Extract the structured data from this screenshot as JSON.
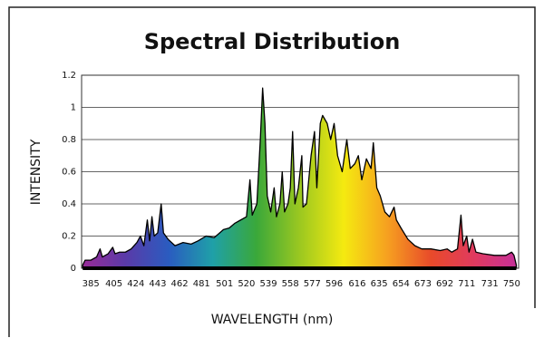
{
  "chart_data": {
    "type": "area",
    "title": "Spectral Distribution",
    "xlabel": "WAVELENGTH (nm)",
    "ylabel": "INTENSITY",
    "x": [
      378,
      380,
      385,
      390,
      393,
      395,
      400,
      404,
      406,
      410,
      415,
      420,
      425,
      428,
      431,
      434,
      436,
      438,
      440,
      443,
      446,
      448,
      452,
      458,
      465,
      472,
      478,
      485,
      492,
      500,
      505,
      510,
      515,
      520,
      523,
      525,
      529,
      532,
      534,
      536,
      538,
      541,
      544,
      546,
      549,
      551,
      553,
      556,
      558,
      560,
      562,
      565,
      568,
      569,
      572,
      576,
      579,
      581,
      584,
      586,
      590,
      593,
      596,
      599,
      603,
      607,
      610,
      614,
      617,
      620,
      624,
      628,
      630,
      633,
      636,
      640,
      644,
      648,
      650,
      654,
      660,
      666,
      672,
      680,
      688,
      694,
      698,
      703,
      706,
      708,
      711,
      713,
      716,
      719,
      725,
      735,
      745,
      750,
      752,
      754
    ],
    "y": [
      0.02,
      0.05,
      0.05,
      0.07,
      0.12,
      0.07,
      0.09,
      0.13,
      0.09,
      0.1,
      0.1,
      0.12,
      0.16,
      0.2,
      0.14,
      0.3,
      0.17,
      0.32,
      0.2,
      0.22,
      0.4,
      0.22,
      0.18,
      0.14,
      0.16,
      0.15,
      0.17,
      0.2,
      0.19,
      0.24,
      0.25,
      0.28,
      0.3,
      0.32,
      0.55,
      0.33,
      0.4,
      0.8,
      1.12,
      0.9,
      0.45,
      0.35,
      0.5,
      0.32,
      0.4,
      0.6,
      0.35,
      0.4,
      0.5,
      0.85,
      0.4,
      0.5,
      0.7,
      0.38,
      0.4,
      0.7,
      0.85,
      0.5,
      0.9,
      0.95,
      0.9,
      0.8,
      0.9,
      0.7,
      0.6,
      0.8,
      0.62,
      0.65,
      0.7,
      0.55,
      0.68,
      0.62,
      0.78,
      0.5,
      0.45,
      0.35,
      0.32,
      0.38,
      0.3,
      0.25,
      0.18,
      0.14,
      0.12,
      0.12,
      0.11,
      0.12,
      0.1,
      0.12,
      0.33,
      0.14,
      0.2,
      0.1,
      0.18,
      0.1,
      0.09,
      0.08,
      0.08,
      0.1,
      0.08,
      0.02
    ],
    "xlim": [
      377,
      756
    ],
    "xticks": [
      385,
      405,
      424,
      443,
      462,
      481,
      501,
      520,
      539,
      558,
      577,
      596,
      616,
      635,
      654,
      673,
      692,
      711,
      731,
      750
    ],
    "ylim": [
      0,
      1.2
    ],
    "yticks": [
      0,
      0.2,
      0.4,
      0.6,
      0.8,
      1,
      1.2
    ],
    "grid": true,
    "fill_colors": [
      "#9a2b98",
      "#5a3aa8",
      "#2a5cc0",
      "#1fa0a8",
      "#3aa83a",
      "#9cc820",
      "#f5ea10",
      "#f6a020",
      "#e84a2a",
      "#e03a60",
      "#c4309c"
    ],
    "line_color": "#000000"
  }
}
